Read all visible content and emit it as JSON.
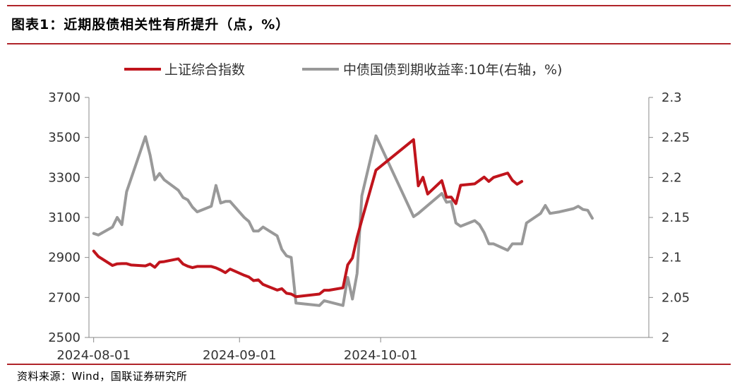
{
  "header": {
    "title": "图表1：近期股债相关性有所提升（点，%）"
  },
  "footer": {
    "source": "资料来源：Wind，国联证券研究所"
  },
  "colors": {
    "rule": "#b0242a",
    "series_index": "#c0141c",
    "series_bond": "#999999",
    "axis": "#888888"
  },
  "chart_data": {
    "type": "line",
    "title": "",
    "x_type": "date",
    "x_range": [
      "2024-07-31",
      "2024-11-27"
    ],
    "x_tick_labels": [
      "2024-08-01",
      "2024-09-01",
      "2024-10-01"
    ],
    "x_tick_dates": [
      "2024-08-01",
      "2024-09-01",
      "2024-10-01"
    ],
    "y_left": {
      "range": [
        2500,
        3700
      ],
      "ticks": [
        2500,
        2700,
        2900,
        3100,
        3300,
        3500,
        3700
      ],
      "tick_labels": [
        "2500",
        "2700",
        "2900",
        "3100",
        "3300",
        "3500",
        "3700"
      ]
    },
    "y_right": {
      "range": [
        2,
        2.3
      ],
      "ticks": [
        2,
        2.05,
        2.1,
        2.15,
        2.2,
        2.25,
        2.3
      ],
      "tick_labels": [
        "2",
        "2.05",
        "2.1",
        "2.15",
        "2.2",
        "2.25",
        "2.3"
      ]
    },
    "legend_position": "top",
    "grid": false,
    "series": [
      {
        "name": "上证综合指数",
        "axis": "left",
        "color": "#c0141c",
        "points": [
          [
            "2024-08-01",
            2932
          ],
          [
            "2024-08-02",
            2905
          ],
          [
            "2024-08-05",
            2860
          ],
          [
            "2024-08-06",
            2868
          ],
          [
            "2024-08-07",
            2869
          ],
          [
            "2024-08-08",
            2869
          ],
          [
            "2024-08-09",
            2862
          ],
          [
            "2024-08-12",
            2858
          ],
          [
            "2024-08-13",
            2867
          ],
          [
            "2024-08-14",
            2851
          ],
          [
            "2024-08-15",
            2877
          ],
          [
            "2024-08-16",
            2879
          ],
          [
            "2024-08-19",
            2893
          ],
          [
            "2024-08-20",
            2867
          ],
          [
            "2024-08-21",
            2856
          ],
          [
            "2024-08-22",
            2849
          ],
          [
            "2024-08-23",
            2855
          ],
          [
            "2024-08-26",
            2855
          ],
          [
            "2024-08-27",
            2848
          ],
          [
            "2024-08-28",
            2837
          ],
          [
            "2024-08-29",
            2824
          ],
          [
            "2024-08-30",
            2842
          ],
          [
            "2024-09-02",
            2811
          ],
          [
            "2024-09-03",
            2802
          ],
          [
            "2024-09-04",
            2784
          ],
          [
            "2024-09-05",
            2788
          ],
          [
            "2024-09-06",
            2765
          ],
          [
            "2024-09-09",
            2737
          ],
          [
            "2024-09-10",
            2744
          ],
          [
            "2024-09-11",
            2721
          ],
          [
            "2024-09-12",
            2717
          ],
          [
            "2024-09-13",
            2704
          ],
          [
            "2024-09-18",
            2717
          ],
          [
            "2024-09-19",
            2736
          ],
          [
            "2024-09-20",
            2736
          ],
          [
            "2024-09-23",
            2748
          ],
          [
            "2024-09-24",
            2863
          ],
          [
            "2024-09-25",
            2897
          ],
          [
            "2024-09-26",
            3000
          ],
          [
            "2024-09-27",
            3087
          ],
          [
            "2024-09-30",
            3336
          ],
          [
            "2024-10-08",
            3489
          ],
          [
            "2024-10-09",
            3258
          ],
          [
            "2024-10-10",
            3301
          ],
          [
            "2024-10-11",
            3217
          ],
          [
            "2024-10-14",
            3284
          ],
          [
            "2024-10-15",
            3201
          ],
          [
            "2024-10-16",
            3202
          ],
          [
            "2024-10-17",
            3169
          ],
          [
            "2024-10-18",
            3261
          ],
          [
            "2024-10-21",
            3268
          ],
          [
            "2024-10-22",
            3285
          ],
          [
            "2024-10-23",
            3302
          ],
          [
            "2024-10-24",
            3280
          ],
          [
            "2024-10-25",
            3300
          ],
          [
            "2024-10-28",
            3322
          ],
          [
            "2024-10-29",
            3286
          ],
          [
            "2024-10-30",
            3266
          ],
          [
            "2024-10-31",
            3280
          ]
        ]
      },
      {
        "name": "中债国债到期收益率:10年(右轴，%)",
        "axis": "right",
        "color": "#999999",
        "points": [
          [
            "2024-08-01",
            2.13
          ],
          [
            "2024-08-02",
            2.128
          ],
          [
            "2024-08-05",
            2.138
          ],
          [
            "2024-08-06",
            2.15
          ],
          [
            "2024-08-07",
            2.141
          ],
          [
            "2024-08-08",
            2.182
          ],
          [
            "2024-08-12",
            2.251
          ],
          [
            "2024-08-13",
            2.228
          ],
          [
            "2024-08-14",
            2.197
          ],
          [
            "2024-08-15",
            2.205
          ],
          [
            "2024-08-16",
            2.197
          ],
          [
            "2024-08-19",
            2.184
          ],
          [
            "2024-08-20",
            2.175
          ],
          [
            "2024-08-21",
            2.172
          ],
          [
            "2024-08-22",
            2.163
          ],
          [
            "2024-08-23",
            2.157
          ],
          [
            "2024-08-26",
            2.164
          ],
          [
            "2024-08-27",
            2.19
          ],
          [
            "2024-08-28",
            2.168
          ],
          [
            "2024-08-29",
            2.17
          ],
          [
            "2024-08-30",
            2.17
          ],
          [
            "2024-09-02",
            2.15
          ],
          [
            "2024-09-03",
            2.145
          ],
          [
            "2024-09-04",
            2.133
          ],
          [
            "2024-09-05",
            2.133
          ],
          [
            "2024-09-06",
            2.138
          ],
          [
            "2024-09-09",
            2.127
          ],
          [
            "2024-09-10",
            2.11
          ],
          [
            "2024-09-11",
            2.102
          ],
          [
            "2024-09-12",
            2.1
          ],
          [
            "2024-09-13",
            2.043
          ],
          [
            "2024-09-18",
            2.04
          ],
          [
            "2024-09-19",
            2.046
          ],
          [
            "2024-09-23",
            2.04
          ],
          [
            "2024-09-24",
            2.075
          ],
          [
            "2024-09-25",
            2.048
          ],
          [
            "2024-09-26",
            2.08
          ],
          [
            "2024-09-27",
            2.177
          ],
          [
            "2024-09-30",
            2.252
          ],
          [
            "2024-10-08",
            2.151
          ],
          [
            "2024-10-09",
            2.155
          ],
          [
            "2024-10-14",
            2.18
          ],
          [
            "2024-10-15",
            2.169
          ],
          [
            "2024-10-16",
            2.17
          ],
          [
            "2024-10-17",
            2.143
          ],
          [
            "2024-10-18",
            2.139
          ],
          [
            "2024-10-21",
            2.146
          ],
          [
            "2024-10-22",
            2.141
          ],
          [
            "2024-10-23",
            2.131
          ],
          [
            "2024-10-24",
            2.117
          ],
          [
            "2024-10-25",
            2.117
          ],
          [
            "2024-10-28",
            2.109
          ],
          [
            "2024-10-29",
            2.117
          ],
          [
            "2024-10-30",
            2.117
          ],
          [
            "2024-10-31",
            2.117
          ],
          [
            "2024-11-01",
            2.143
          ],
          [
            "2024-11-04",
            2.155
          ],
          [
            "2024-11-05",
            2.165
          ],
          [
            "2024-11-06",
            2.155
          ],
          [
            "2024-11-08",
            2.157
          ],
          [
            "2024-11-11",
            2.161
          ],
          [
            "2024-11-12",
            2.164
          ],
          [
            "2024-11-13",
            2.16
          ],
          [
            "2024-11-14",
            2.159
          ],
          [
            "2024-11-15",
            2.149
          ]
        ]
      }
    ]
  }
}
